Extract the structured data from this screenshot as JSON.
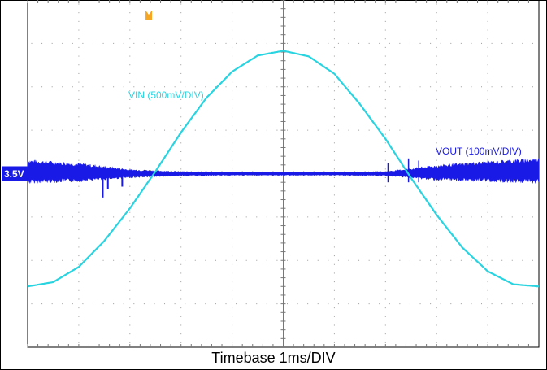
{
  "chart_data": {
    "type": "line",
    "title": "",
    "xlabel": "Timebase 1ms/DIV",
    "ylabel": "",
    "grid": true,
    "x_divisions": 10,
    "y_divisions": 8,
    "trigger_marker": "trigger-icon",
    "reference_marker": {
      "label": "3.5V",
      "color": "#1a1ae6"
    },
    "series": [
      {
        "name": "VIN (500mV/DIV)",
        "color": "#29d4e0",
        "unit_per_div": "500mV/DIV",
        "x": [
          0,
          0.5,
          1,
          1.5,
          2,
          2.5,
          3,
          3.5,
          4,
          4.5,
          5,
          5.5,
          6,
          6.5,
          7,
          7.5,
          8,
          8.5,
          9,
          9.5,
          10
        ],
        "y_div": [
          -2.6,
          -2.5,
          -2.15,
          -1.55,
          -0.8,
          0.05,
          0.95,
          1.75,
          2.35,
          2.72,
          2.83,
          2.7,
          2.3,
          1.6,
          0.8,
          -0.1,
          -0.95,
          -1.7,
          -2.25,
          -2.55,
          -2.6
        ]
      },
      {
        "name": "VOUT (100mV/DIV)",
        "color": "#1a1ae6",
        "unit_per_div": "100mV/DIV",
        "x": [
          0,
          1,
          2,
          3,
          4,
          5,
          6,
          7,
          8,
          9,
          10
        ],
        "y_div": [
          0.05,
          0.03,
          0.0,
          0.0,
          0.0,
          0.0,
          0.0,
          0.0,
          0.02,
          0.05,
          0.07
        ],
        "ripple_div": [
          0.28,
          0.22,
          0.1,
          0.05,
          0.04,
          0.04,
          0.04,
          0.05,
          0.18,
          0.24,
          0.3
        ]
      }
    ]
  }
}
